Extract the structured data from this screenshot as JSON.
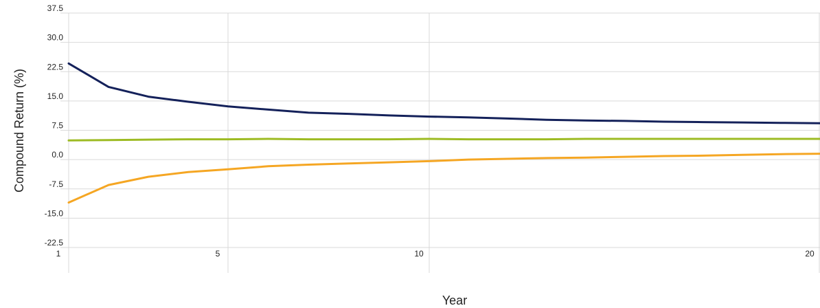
{
  "chart_data": {
    "type": "line",
    "title": "",
    "xlabel": "Year",
    "ylabel": "Compound Return (%)",
    "xlim": [
      1,
      20
    ],
    "ylim": [
      -22.5,
      37.5
    ],
    "y_ticks": [
      "37.5",
      "30.0",
      "22.5",
      "15.0",
      "7.5",
      "0.0",
      "-7.5",
      "-15.0",
      "-22.5"
    ],
    "x_ticks": [
      "1",
      "5",
      "10",
      "20"
    ],
    "grid": true,
    "legend": "none",
    "series": [
      {
        "color": "#14215a",
        "x": [
          1,
          2,
          3,
          4,
          5,
          6,
          7,
          8,
          9,
          10,
          11,
          12,
          13,
          14,
          15,
          16,
          17,
          18,
          19,
          20
        ],
        "y": [
          24.6,
          18.6,
          16.1,
          14.8,
          13.6,
          12.8,
          12.0,
          11.7,
          11.3,
          11.0,
          10.8,
          10.5,
          10.2,
          10.0,
          9.9,
          9.7,
          9.6,
          9.5,
          9.4,
          9.3
        ]
      },
      {
        "color": "#9dbb23",
        "x": [
          1,
          2,
          3,
          4,
          5,
          6,
          7,
          8,
          9,
          10,
          11,
          12,
          13,
          14,
          15,
          16,
          17,
          18,
          19,
          20
        ],
        "y": [
          4.9,
          5.0,
          5.1,
          5.2,
          5.2,
          5.3,
          5.2,
          5.2,
          5.2,
          5.3,
          5.2,
          5.2,
          5.2,
          5.3,
          5.3,
          5.3,
          5.3,
          5.3,
          5.3,
          5.3
        ]
      },
      {
        "color": "#f5a623",
        "x": [
          1,
          2,
          3,
          4,
          5,
          6,
          7,
          8,
          9,
          10,
          11,
          12,
          13,
          14,
          15,
          16,
          17,
          18,
          19,
          20
        ],
        "y": [
          -11.0,
          -6.5,
          -4.4,
          -3.2,
          -2.5,
          -1.7,
          -1.3,
          -1.0,
          -0.7,
          -0.4,
          0.0,
          0.2,
          0.4,
          0.5,
          0.7,
          0.9,
          1.0,
          1.2,
          1.4,
          1.5
        ]
      }
    ]
  },
  "colors": {
    "grid": "#d9d9d9",
    "text": "#222222"
  }
}
